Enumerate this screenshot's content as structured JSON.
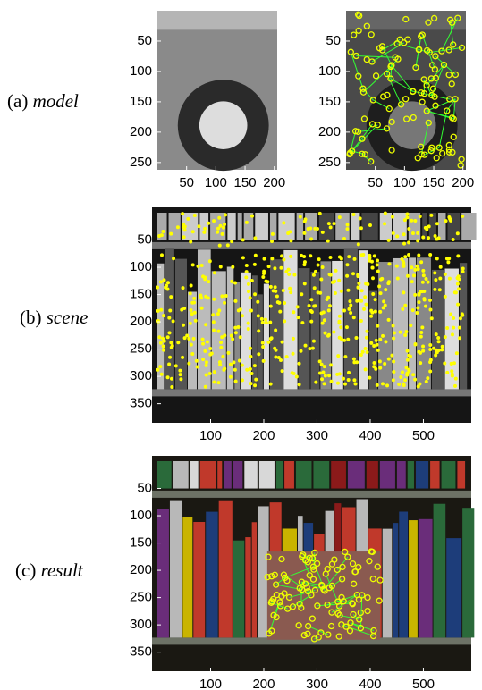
{
  "panels": [
    {
      "label": "(a)",
      "caption": "model",
      "plots": [
        {
          "xlim": [
            0,
            205
          ],
          "ylim": [
            0,
            262
          ],
          "xticks": [
            50,
            100,
            150,
            200
          ],
          "yticks": [
            50,
            100,
            150,
            200,
            250
          ]
        },
        {
          "xlim": [
            0,
            205
          ],
          "ylim": [
            0,
            262
          ],
          "xticks": [
            50,
            100,
            150,
            200
          ],
          "yticks": [
            50,
            100,
            150,
            200,
            250
          ]
        }
      ]
    },
    {
      "label": "(b)",
      "caption": "scene",
      "plots": [
        {
          "xlim": [
            0,
            590
          ],
          "ylim": [
            0,
            385
          ],
          "xticks": [
            100,
            200,
            300,
            400,
            500
          ],
          "yticks": [
            50,
            100,
            150,
            200,
            250,
            300,
            350
          ]
        }
      ]
    },
    {
      "label": "(c)",
      "caption": "result",
      "plots": [
        {
          "xlim": [
            0,
            590
          ],
          "ylim": [
            0,
            385
          ],
          "xticks": [
            100,
            200,
            300,
            400,
            500
          ],
          "yticks": [
            50,
            100,
            150,
            200,
            250,
            300,
            350
          ]
        }
      ]
    }
  ]
}
